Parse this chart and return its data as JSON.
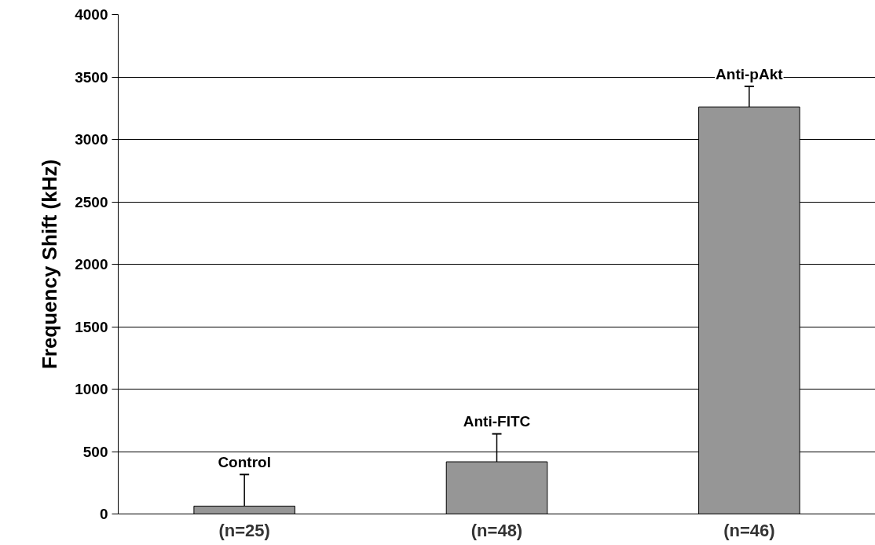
{
  "chart_data": {
    "type": "bar",
    "ylabel": "Frequency Shift (kHz)",
    "categories": [
      "(n=25)",
      "(n=48)",
      "(n=46)"
    ],
    "values": [
      63,
      418,
      3260
    ],
    "errors": [
      [
        63,
        316
      ],
      [
        418,
        642
      ],
      [
        3260,
        3424
      ]
    ],
    "color": "#969696",
    "ylim": [
      0,
      4000
    ],
    "yticks": [
      0,
      500,
      1000,
      1500,
      2000,
      2500,
      3000,
      3500,
      4000
    ],
    "grid": "y",
    "annotations": [
      "Control",
      "Anti-FITC",
      "Anti-pAkt"
    ]
  }
}
